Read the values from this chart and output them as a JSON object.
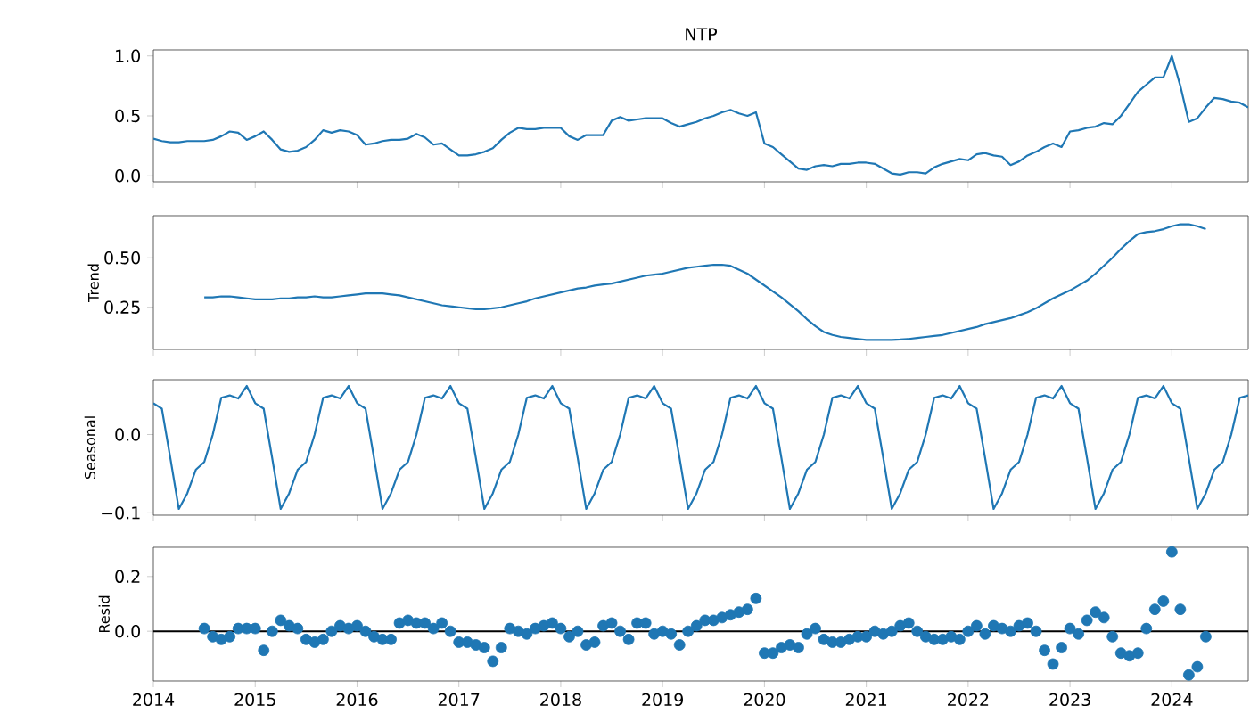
{
  "chart_data": [
    {
      "type": "line",
      "title": "NTP",
      "color": "#1f77b4",
      "x": [
        "2014-01",
        "2014-02",
        "2014-03",
        "2014-04",
        "2014-05",
        "2014-06",
        "2014-07",
        "2014-08",
        "2014-09",
        "2014-10",
        "2014-11",
        "2014-12",
        "2015-01",
        "2015-02",
        "2015-03",
        "2015-04",
        "2015-05",
        "2015-06",
        "2015-07",
        "2015-08",
        "2015-09",
        "2015-10",
        "2015-11",
        "2015-12",
        "2016-01",
        "2016-02",
        "2016-03",
        "2016-04",
        "2016-05",
        "2016-06",
        "2016-07",
        "2016-08",
        "2016-09",
        "2016-10",
        "2016-11",
        "2016-12",
        "2017-01",
        "2017-02",
        "2017-03",
        "2017-04",
        "2017-05",
        "2017-06",
        "2017-07",
        "2017-08",
        "2017-09",
        "2017-10",
        "2017-11",
        "2017-12",
        "2018-01",
        "2018-02",
        "2018-03",
        "2018-04",
        "2018-05",
        "2018-06",
        "2018-07",
        "2018-08",
        "2018-09",
        "2018-10",
        "2018-11",
        "2018-12",
        "2019-01",
        "2019-02",
        "2019-03",
        "2019-04",
        "2019-05",
        "2019-06",
        "2019-07",
        "2019-08",
        "2019-09",
        "2019-10",
        "2019-11",
        "2019-12",
        "2020-01",
        "2020-02",
        "2020-03",
        "2020-04",
        "2020-05",
        "2020-06",
        "2020-07",
        "2020-08",
        "2020-09",
        "2020-10",
        "2020-11",
        "2020-12",
        "2021-01",
        "2021-02",
        "2021-03",
        "2021-04",
        "2021-05",
        "2021-06",
        "2021-07",
        "2021-08",
        "2021-09",
        "2021-10",
        "2021-11",
        "2021-12",
        "2022-01",
        "2022-02",
        "2022-03",
        "2022-04",
        "2022-05",
        "2022-06",
        "2022-07",
        "2022-08",
        "2022-09",
        "2022-10",
        "2022-11",
        "2022-12",
        "2023-01",
        "2023-02",
        "2023-03",
        "2023-04",
        "2023-05",
        "2023-06",
        "2023-07",
        "2023-08",
        "2023-09",
        "2023-10",
        "2023-11",
        "2023-12",
        "2024-01",
        "2024-02",
        "2024-03",
        "2024-04",
        "2024-05",
        "2024-06",
        "2024-07",
        "2024-08",
        "2024-09",
        "2024-10"
      ],
      "values": [
        0.31,
        0.29,
        0.28,
        0.28,
        0.29,
        0.29,
        0.29,
        0.3,
        0.33,
        0.37,
        0.36,
        0.3,
        0.33,
        0.37,
        0.3,
        0.22,
        0.2,
        0.21,
        0.24,
        0.3,
        0.38,
        0.36,
        0.38,
        0.37,
        0.34,
        0.26,
        0.27,
        0.29,
        0.3,
        0.3,
        0.31,
        0.35,
        0.32,
        0.26,
        0.27,
        0.22,
        0.17,
        0.17,
        0.18,
        0.2,
        0.23,
        0.3,
        0.36,
        0.4,
        0.39,
        0.39,
        0.4,
        0.4,
        0.4,
        0.33,
        0.3,
        0.34,
        0.34,
        0.34,
        0.46,
        0.49,
        0.46,
        0.47,
        0.48,
        0.48,
        0.48,
        0.44,
        0.41,
        0.43,
        0.45,
        0.48,
        0.5,
        0.53,
        0.55,
        0.52,
        0.5,
        0.53,
        0.27,
        0.24,
        0.18,
        0.12,
        0.06,
        0.05,
        0.08,
        0.09,
        0.08,
        0.1,
        0.1,
        0.11,
        0.11,
        0.1,
        0.06,
        0.02,
        0.01,
        0.03,
        0.03,
        0.02,
        0.07,
        0.1,
        0.12,
        0.14,
        0.13,
        0.18,
        0.19,
        0.17,
        0.16,
        0.09,
        0.12,
        0.17,
        0.2,
        0.24,
        0.27,
        0.24,
        0.37,
        0.38,
        0.4,
        0.41,
        0.44,
        0.43,
        0.5,
        0.6,
        0.7,
        0.76,
        0.82,
        0.82,
        1.0,
        0.75,
        0.45,
        0.48,
        0.57,
        0.65,
        0.64,
        0.62,
        0.61,
        0.57
      ],
      "xlim": [
        "2014-01",
        "2024-10"
      ],
      "ylim": [
        -0.05,
        1.05
      ],
      "xticks": [
        "2014",
        "2015",
        "2016",
        "2017",
        "2018",
        "2019",
        "2020",
        "2021",
        "2022",
        "2023",
        "2024"
      ],
      "yticks": [
        {
          "value": 0,
          "label": "0.0"
        },
        {
          "value": 0.5,
          "label": "0.5"
        },
        {
          "value": 1,
          "label": "1.0"
        }
      ],
      "tick_labels": "y"
    },
    {
      "type": "line",
      "ylabel": "Trend",
      "color": "#1f77b4",
      "x": [
        "2014-07",
        "2014-08",
        "2014-09",
        "2014-10",
        "2014-11",
        "2014-12",
        "2015-01",
        "2015-02",
        "2015-03",
        "2015-04",
        "2015-05",
        "2015-06",
        "2015-07",
        "2015-08",
        "2015-09",
        "2015-10",
        "2015-11",
        "2015-12",
        "2016-01",
        "2016-02",
        "2016-03",
        "2016-04",
        "2016-05",
        "2016-06",
        "2016-07",
        "2016-08",
        "2016-09",
        "2016-10",
        "2016-11",
        "2016-12",
        "2017-01",
        "2017-02",
        "2017-03",
        "2017-04",
        "2017-05",
        "2017-06",
        "2017-07",
        "2017-08",
        "2017-09",
        "2017-10",
        "2017-11",
        "2017-12",
        "2018-01",
        "2018-02",
        "2018-03",
        "2018-04",
        "2018-05",
        "2018-06",
        "2018-07",
        "2018-08",
        "2018-09",
        "2018-10",
        "2018-11",
        "2018-12",
        "2019-01",
        "2019-02",
        "2019-03",
        "2019-04",
        "2019-05",
        "2019-06",
        "2019-07",
        "2019-08",
        "2019-09",
        "2019-10",
        "2019-11",
        "2019-12",
        "2020-01",
        "2020-02",
        "2020-03",
        "2020-04",
        "2020-05",
        "2020-06",
        "2020-07",
        "2020-08",
        "2020-09",
        "2020-10",
        "2020-11",
        "2020-12",
        "2021-01",
        "2021-02",
        "2021-03",
        "2021-04",
        "2021-05",
        "2021-06",
        "2021-07",
        "2021-08",
        "2021-09",
        "2021-10",
        "2021-11",
        "2021-12",
        "2022-01",
        "2022-02",
        "2022-03",
        "2022-04",
        "2022-05",
        "2022-06",
        "2022-07",
        "2022-08",
        "2022-09",
        "2022-10",
        "2022-11",
        "2022-12",
        "2023-01",
        "2023-02",
        "2023-03",
        "2023-04",
        "2023-05",
        "2023-06",
        "2023-07",
        "2023-08",
        "2023-09",
        "2023-10",
        "2023-11",
        "2023-12",
        "2024-01",
        "2024-02",
        "2024-03",
        "2024-04",
        "2024-05"
      ],
      "values": [
        0.3,
        0.3,
        0.305,
        0.305,
        0.3,
        0.295,
        0.29,
        0.29,
        0.29,
        0.295,
        0.295,
        0.3,
        0.3,
        0.305,
        0.3,
        0.3,
        0.305,
        0.31,
        0.315,
        0.32,
        0.32,
        0.32,
        0.315,
        0.31,
        0.3,
        0.29,
        0.28,
        0.27,
        0.26,
        0.255,
        0.25,
        0.245,
        0.24,
        0.24,
        0.245,
        0.25,
        0.26,
        0.27,
        0.28,
        0.295,
        0.305,
        0.315,
        0.325,
        0.335,
        0.345,
        0.35,
        0.36,
        0.365,
        0.37,
        0.38,
        0.39,
        0.4,
        0.41,
        0.415,
        0.42,
        0.43,
        0.44,
        0.45,
        0.455,
        0.46,
        0.465,
        0.465,
        0.46,
        0.44,
        0.42,
        0.39,
        0.36,
        0.33,
        0.3,
        0.265,
        0.23,
        0.19,
        0.155,
        0.125,
        0.11,
        0.1,
        0.095,
        0.09,
        0.085,
        0.085,
        0.085,
        0.085,
        0.087,
        0.09,
        0.095,
        0.1,
        0.105,
        0.11,
        0.12,
        0.13,
        0.14,
        0.15,
        0.165,
        0.175,
        0.185,
        0.195,
        0.21,
        0.225,
        0.245,
        0.27,
        0.295,
        0.315,
        0.335,
        0.36,
        0.385,
        0.42,
        0.46,
        0.5,
        0.545,
        0.585,
        0.62,
        0.63,
        0.635,
        0.645,
        0.66,
        0.67,
        0.67,
        0.66,
        0.645
      ],
      "xlim": [
        "2014-01",
        "2024-10"
      ],
      "ylim": [
        0.037,
        0.713
      ],
      "xticks": [
        "2014",
        "2015",
        "2016",
        "2017",
        "2018",
        "2019",
        "2020",
        "2021",
        "2022",
        "2023",
        "2024"
      ],
      "yticks": [
        {
          "value": 0.25,
          "label": "0.25"
        },
        {
          "value": 0.5,
          "label": "0.50"
        }
      ],
      "tick_labels": "y"
    },
    {
      "type": "line",
      "ylabel": "Seasonal",
      "color": "#1f77b4",
      "x": [
        "2014-01",
        "2014-02",
        "2014-03",
        "2014-04",
        "2014-05",
        "2014-06",
        "2014-07",
        "2014-08",
        "2014-09",
        "2014-10",
        "2014-11",
        "2014-12",
        "2015-01",
        "2015-02",
        "2015-03",
        "2015-04",
        "2015-05",
        "2015-06",
        "2015-07",
        "2015-08",
        "2015-09",
        "2015-10",
        "2015-11",
        "2015-12",
        "2016-01",
        "2016-02",
        "2016-03",
        "2016-04",
        "2016-05",
        "2016-06",
        "2016-07",
        "2016-08",
        "2016-09",
        "2016-10",
        "2016-11",
        "2016-12",
        "2017-01",
        "2017-02",
        "2017-03",
        "2017-04",
        "2017-05",
        "2017-06",
        "2017-07",
        "2017-08",
        "2017-09",
        "2017-10",
        "2017-11",
        "2017-12",
        "2018-01",
        "2018-02",
        "2018-03",
        "2018-04",
        "2018-05",
        "2018-06",
        "2018-07",
        "2018-08",
        "2018-09",
        "2018-10",
        "2018-11",
        "2018-12",
        "2019-01",
        "2019-02",
        "2019-03",
        "2019-04",
        "2019-05",
        "2019-06",
        "2019-07",
        "2019-08",
        "2019-09",
        "2019-10",
        "2019-11",
        "2019-12",
        "2020-01",
        "2020-02",
        "2020-03",
        "2020-04",
        "2020-05",
        "2020-06",
        "2020-07",
        "2020-08",
        "2020-09",
        "2020-10",
        "2020-11",
        "2020-12",
        "2021-01",
        "2021-02",
        "2021-03",
        "2021-04",
        "2021-05",
        "2021-06",
        "2021-07",
        "2021-08",
        "2021-09",
        "2021-10",
        "2021-11",
        "2021-12",
        "2022-01",
        "2022-02",
        "2022-03",
        "2022-04",
        "2022-05",
        "2022-06",
        "2022-07",
        "2022-08",
        "2022-09",
        "2022-10",
        "2022-11",
        "2022-12",
        "2023-01",
        "2023-02",
        "2023-03",
        "2023-04",
        "2023-05",
        "2023-06",
        "2023-07",
        "2023-08",
        "2023-09",
        "2023-10",
        "2023-11",
        "2023-12",
        "2024-01",
        "2024-02",
        "2024-03",
        "2024-04",
        "2024-05",
        "2024-06",
        "2024-07",
        "2024-08",
        "2024-09",
        "2024-10"
      ],
      "values": [
        0.04,
        0.033,
        -0.03,
        -0.095,
        -0.075,
        -0.045,
        -0.035,
        0.0,
        0.047,
        0.05,
        0.046,
        0.062,
        0.04,
        0.033,
        -0.03,
        -0.095,
        -0.075,
        -0.045,
        -0.035,
        0.0,
        0.047,
        0.05,
        0.046,
        0.062,
        0.04,
        0.033,
        -0.03,
        -0.095,
        -0.075,
        -0.045,
        -0.035,
        0.0,
        0.047,
        0.05,
        0.046,
        0.062,
        0.04,
        0.033,
        -0.03,
        -0.095,
        -0.075,
        -0.045,
        -0.035,
        0.0,
        0.047,
        0.05,
        0.046,
        0.062,
        0.04,
        0.033,
        -0.03,
        -0.095,
        -0.075,
        -0.045,
        -0.035,
        0.0,
        0.047,
        0.05,
        0.046,
        0.062,
        0.04,
        0.033,
        -0.03,
        -0.095,
        -0.075,
        -0.045,
        -0.035,
        0.0,
        0.047,
        0.05,
        0.046,
        0.062,
        0.04,
        0.033,
        -0.03,
        -0.095,
        -0.075,
        -0.045,
        -0.035,
        0.0,
        0.047,
        0.05,
        0.046,
        0.062,
        0.04,
        0.033,
        -0.03,
        -0.095,
        -0.075,
        -0.045,
        -0.035,
        0.0,
        0.047,
        0.05,
        0.046,
        0.062,
        0.04,
        0.033,
        -0.03,
        -0.095,
        -0.075,
        -0.045,
        -0.035,
        0.0,
        0.047,
        0.05,
        0.046,
        0.062,
        0.04,
        0.033,
        -0.03,
        -0.095,
        -0.075,
        -0.045,
        -0.035,
        0.0,
        0.047,
        0.05,
        0.046,
        0.062,
        0.04,
        0.033,
        -0.03,
        -0.095,
        -0.075,
        -0.045,
        -0.035,
        0.0,
        0.047,
        0.05
      ],
      "xlim": [
        "2014-01",
        "2024-10"
      ],
      "ylim": [
        -0.103,
        0.07
      ],
      "xticks": [
        "2014",
        "2015",
        "2016",
        "2017",
        "2018",
        "2019",
        "2020",
        "2021",
        "2022",
        "2023",
        "2024"
      ],
      "yticks": [
        {
          "value": -0.1,
          "label": "−0.1"
        },
        {
          "value": 0,
          "label": "0.0"
        }
      ],
      "tick_labels": "y"
    },
    {
      "type": "scatter",
      "ylabel": "Resid",
      "color": "#1f77b4",
      "marker": "circle",
      "x": [
        "2014-07",
        "2014-08",
        "2014-09",
        "2014-10",
        "2014-11",
        "2014-12",
        "2015-01",
        "2015-02",
        "2015-03",
        "2015-04",
        "2015-05",
        "2015-06",
        "2015-07",
        "2015-08",
        "2015-09",
        "2015-10",
        "2015-11",
        "2015-12",
        "2016-01",
        "2016-02",
        "2016-03",
        "2016-04",
        "2016-05",
        "2016-06",
        "2016-07",
        "2016-08",
        "2016-09",
        "2016-10",
        "2016-11",
        "2016-12",
        "2017-01",
        "2017-02",
        "2017-03",
        "2017-04",
        "2017-05",
        "2017-06",
        "2017-07",
        "2017-08",
        "2017-09",
        "2017-10",
        "2017-11",
        "2017-12",
        "2018-01",
        "2018-02",
        "2018-03",
        "2018-04",
        "2018-05",
        "2018-06",
        "2018-07",
        "2018-08",
        "2018-09",
        "2018-10",
        "2018-11",
        "2018-12",
        "2019-01",
        "2019-02",
        "2019-03",
        "2019-04",
        "2019-05",
        "2019-06",
        "2019-07",
        "2019-08",
        "2019-09",
        "2019-10",
        "2019-11",
        "2019-12",
        "2020-01",
        "2020-02",
        "2020-03",
        "2020-04",
        "2020-05",
        "2020-06",
        "2020-07",
        "2020-08",
        "2020-09",
        "2020-10",
        "2020-11",
        "2020-12",
        "2021-01",
        "2021-02",
        "2021-03",
        "2021-04",
        "2021-05",
        "2021-06",
        "2021-07",
        "2021-08",
        "2021-09",
        "2021-10",
        "2021-11",
        "2021-12",
        "2022-01",
        "2022-02",
        "2022-03",
        "2022-04",
        "2022-05",
        "2022-06",
        "2022-07",
        "2022-08",
        "2022-09",
        "2022-10",
        "2022-11",
        "2022-12",
        "2023-01",
        "2023-02",
        "2023-03",
        "2023-04",
        "2023-05",
        "2023-06",
        "2023-07",
        "2023-08",
        "2023-09",
        "2023-10",
        "2023-11",
        "2023-12",
        "2024-01",
        "2024-02",
        "2024-03",
        "2024-04",
        "2024-05"
      ],
      "values": [
        0.01,
        -0.02,
        -0.03,
        -0.02,
        0.01,
        0.01,
        0.01,
        -0.07,
        0.0,
        0.04,
        0.02,
        0.01,
        -0.03,
        -0.04,
        -0.03,
        0.0,
        0.02,
        0.01,
        0.02,
        0.0,
        -0.02,
        -0.03,
        -0.03,
        0.03,
        0.04,
        0.03,
        0.03,
        0.01,
        0.03,
        0.0,
        -0.04,
        -0.04,
        -0.05,
        -0.06,
        -0.11,
        -0.06,
        0.01,
        0.0,
        -0.01,
        0.01,
        0.02,
        0.03,
        0.01,
        -0.02,
        0.0,
        -0.05,
        -0.04,
        0.02,
        0.03,
        0.0,
        -0.03,
        0.03,
        0.03,
        -0.01,
        0.0,
        -0.01,
        -0.05,
        0.0,
        0.02,
        0.04,
        0.04,
        0.05,
        0.06,
        0.07,
        0.08,
        0.12,
        -0.08,
        -0.08,
        -0.06,
        -0.05,
        -0.06,
        -0.01,
        0.01,
        -0.03,
        -0.04,
        -0.04,
        -0.03,
        -0.02,
        -0.02,
        0.0,
        -0.01,
        0.0,
        0.02,
        0.03,
        0.0,
        -0.02,
        -0.03,
        -0.03,
        -0.02,
        -0.03,
        0.0,
        0.02,
        -0.01,
        0.02,
        0.01,
        0.0,
        0.02,
        0.03,
        0.0,
        -0.07,
        -0.12,
        -0.06,
        0.01,
        -0.01,
        0.04,
        0.07,
        0.05,
        -0.02,
        -0.08,
        -0.09,
        -0.08,
        0.01,
        0.08,
        0.11,
        0.29,
        0.08,
        -0.16,
        -0.13,
        -0.02
      ],
      "xlim": [
        "2014-01",
        "2024-10"
      ],
      "ylim": [
        -0.182,
        0.307
      ],
      "xticks": [
        "2014",
        "2015",
        "2016",
        "2017",
        "2018",
        "2019",
        "2020",
        "2021",
        "2022",
        "2023",
        "2024"
      ],
      "yticks": [
        {
          "value": 0,
          "label": "0.0"
        },
        {
          "value": 0.2,
          "label": "0.2"
        }
      ],
      "ref_lines": [
        {
          "axis": "y",
          "value": 0,
          "color": "#000000"
        }
      ]
    }
  ]
}
